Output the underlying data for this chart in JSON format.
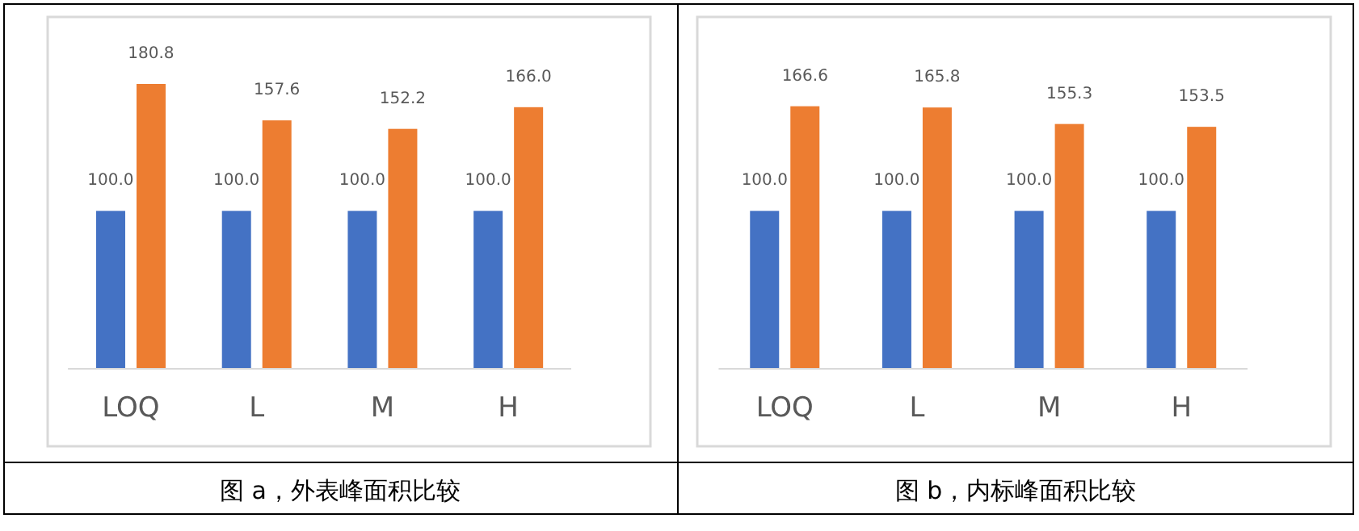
{
  "chart_data": [
    {
      "type": "bar",
      "title": "图 a，外表峰面积比较",
      "categories": [
        "LOQ",
        "L",
        "M",
        "H"
      ],
      "series": [
        {
          "color": "#4472c4",
          "values": [
            100.0,
            100.0,
            100.0,
            100.0
          ],
          "value_labels": [
            "100.0",
            "100.0",
            "100.0",
            "100.0"
          ]
        },
        {
          "color": "#ed7d31",
          "values": [
            180.8,
            157.6,
            152.2,
            166.0
          ],
          "value_labels": [
            "180.8",
            "157.6",
            "152.2",
            "166.0"
          ]
        }
      ]
    },
    {
      "type": "bar",
      "title": "图 b，内标峰面积比较",
      "categories": [
        "LOQ",
        "L",
        "M",
        "H"
      ],
      "series": [
        {
          "color": "#4472c4",
          "values": [
            100.0,
            100.0,
            100.0,
            100.0
          ],
          "value_labels": [
            "100.0",
            "100.0",
            "100.0",
            "100.0"
          ]
        },
        {
          "color": "#ed7d31",
          "values": [
            166.6,
            165.8,
            155.3,
            153.5
          ],
          "value_labels": [
            "166.6",
            "165.8",
            "155.3",
            "153.5"
          ]
        }
      ]
    }
  ]
}
